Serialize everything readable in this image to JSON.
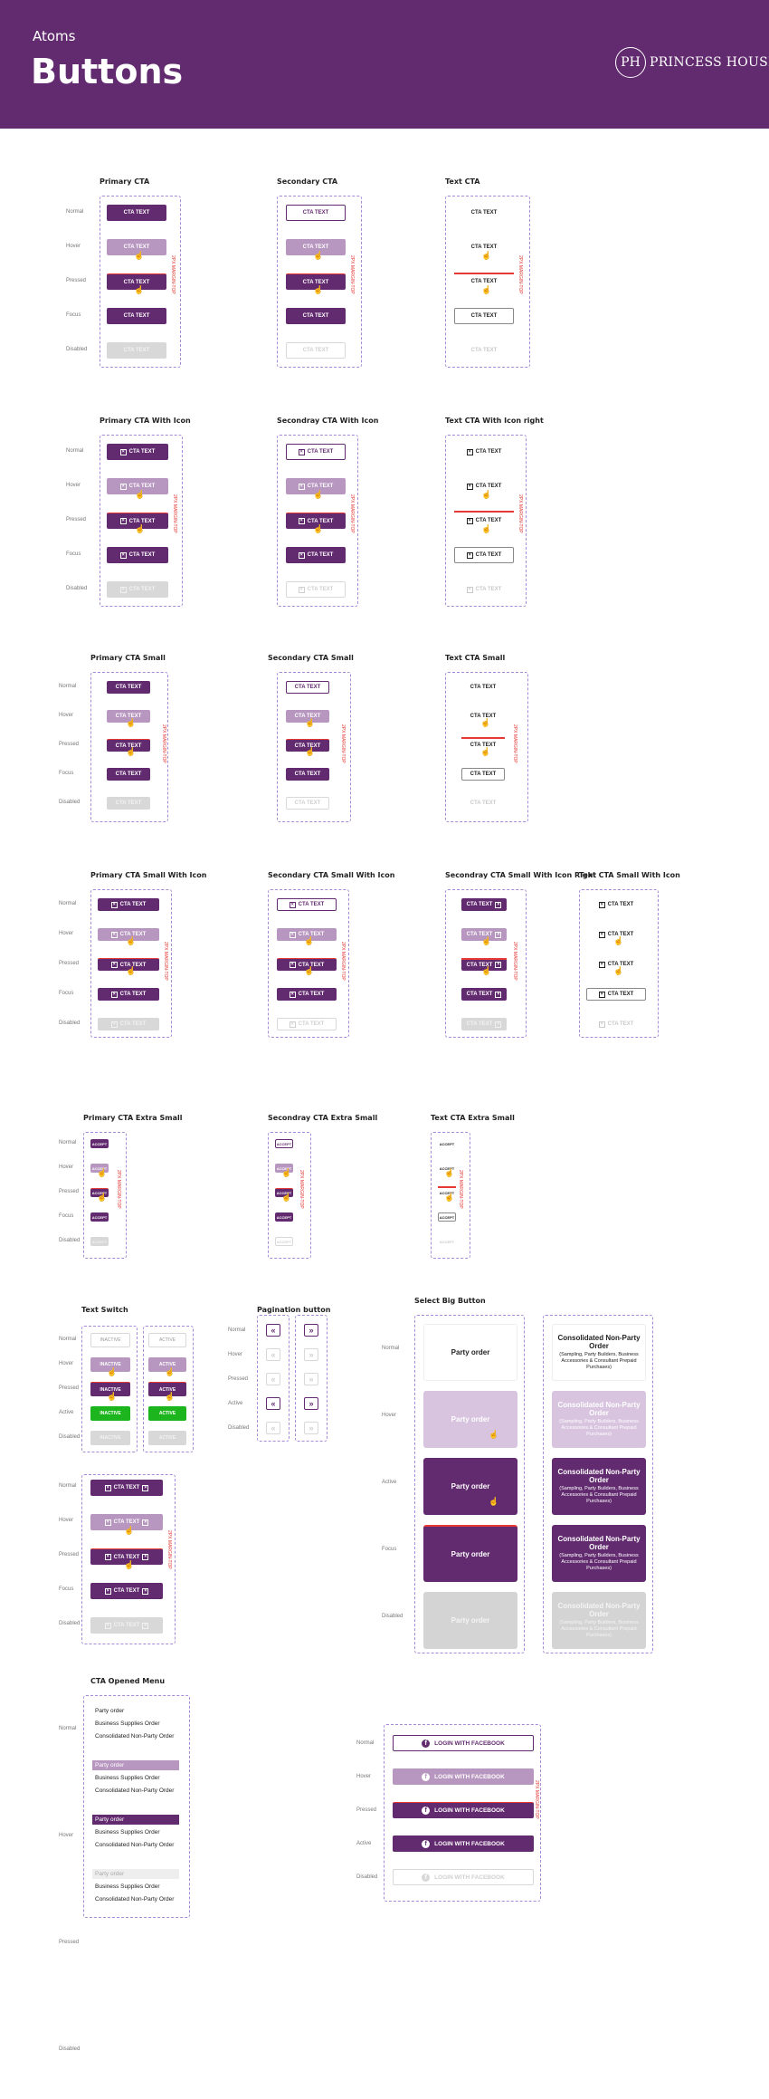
{
  "header": {
    "section": "Atoms",
    "title": "Buttons",
    "logo_mark": "PH",
    "logo_text": "PRINCESS HOUSE"
  },
  "colors": {
    "brand": "#622b6f",
    "hover": "#b796bf",
    "disabled": "#d8d8d8",
    "active_green": "#1db51d",
    "margin_red": "#e53935",
    "dash": "#a58bd7"
  },
  "states": {
    "normal": "Normal",
    "hover": "Hover",
    "pressed": "Pressed",
    "focus": "Focus",
    "disabled": "Disabled",
    "active": "Active"
  },
  "labels": {
    "cta": "CTA TEXT",
    "accept": "ACCEPT",
    "margin": "2PX MARGIN-TOP"
  },
  "sections": {
    "primary_cta": "Primary CTA",
    "secondary_cta": "Secondary CTA",
    "text_cta": "Text CTA",
    "primary_icon": "Primary CTA With Icon",
    "secondary_icon": "Secondray CTA With Icon",
    "text_icon_right": "Text CTA With Icon right",
    "primary_small": "Primary CTA Small",
    "secondary_small": "Secondary CTA Small",
    "text_small": "Text CTA Small",
    "primary_small_icon": "Primary CTA Small With Icon",
    "secondary_small_icon": "Secondary CTA Small With Icon",
    "secondary_small_icon_right": "Secondray CTA Small With Icon Right",
    "text_small_icon": "Text CTA Small With Icon",
    "primary_xs": "Primary CTA Extra Small",
    "secondary_xs": "Secondray CTA Extra Small",
    "text_xs": "Text CTA Extra Small",
    "text_switch": "Text Switch",
    "pagination": "Pagination button",
    "select_big": "Select Big Button",
    "opened_menu": "CTA Opened Menu"
  },
  "text_switch": {
    "inactive": "INACTIVE",
    "active": "ACTIVE"
  },
  "select_big": {
    "party": "Party order",
    "consolidated_title": "Consolidated Non-Party Order",
    "consolidated_sub": "(Sampling, Party Builders, Business Accessories & Consultant Prepaid Purchases)"
  },
  "menu": {
    "items": [
      "Party order",
      "Business Supplies Order",
      "Consolidated Non-Party Order"
    ]
  },
  "facebook": {
    "label": "LOGIN WITH FACEBOOK",
    "icon": "f"
  },
  "icons": {
    "cta_icon": "close-box-icon",
    "cursor": "hand-cursor-icon",
    "prev": "double-chevron-left-icon",
    "next": "double-chevron-right-icon"
  }
}
